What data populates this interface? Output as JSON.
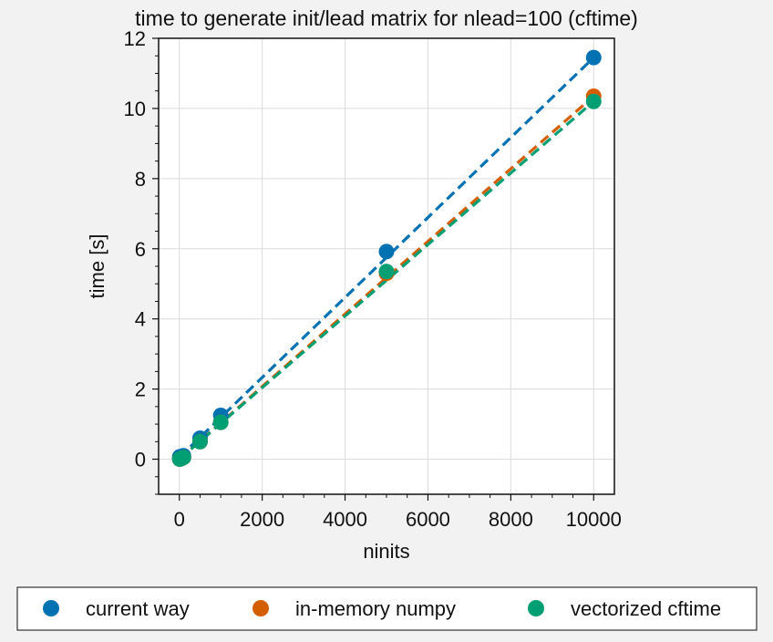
{
  "chart_data": {
    "type": "scatter",
    "title": "time to generate init/lead matrix for nlead=100 (cftime)",
    "xlabel": "ninits",
    "ylabel": "time [s]",
    "xlim": [
      -500,
      10500
    ],
    "ylim": [
      -1,
      12
    ],
    "xticks": [
      0,
      2000,
      4000,
      6000,
      8000,
      10000
    ],
    "yticks": [
      0,
      2,
      4,
      6,
      8,
      10,
      12
    ],
    "grid": true,
    "legend_position": "bottom",
    "series": [
      {
        "name": "current way",
        "color": "#0072b2",
        "x": [
          10,
          50,
          100,
          500,
          1000,
          5000,
          10000
        ],
        "y": [
          0.07,
          0.08,
          0.1,
          0.6,
          1.25,
          5.92,
          11.45
        ],
        "fit": [
          [
            0,
            0.05
          ],
          [
            10000,
            11.45
          ]
        ]
      },
      {
        "name": "in-memory numpy",
        "color": "#d55e00",
        "x": [
          10,
          50,
          100,
          500,
          1000,
          5000,
          10000
        ],
        "y": [
          0.0,
          0.02,
          0.05,
          0.5,
          1.05,
          5.3,
          10.35
        ],
        "fit": [
          [
            0,
            0.0
          ],
          [
            10000,
            10.35
          ]
        ]
      },
      {
        "name": "vectorized cftime",
        "color": "#009e73",
        "x": [
          10,
          50,
          100,
          500,
          1000,
          5000,
          10000
        ],
        "y": [
          0.0,
          0.02,
          0.05,
          0.5,
          1.05,
          5.35,
          10.2
        ],
        "fit": [
          [
            0,
            0.0
          ],
          [
            10000,
            10.2
          ]
        ]
      }
    ]
  }
}
